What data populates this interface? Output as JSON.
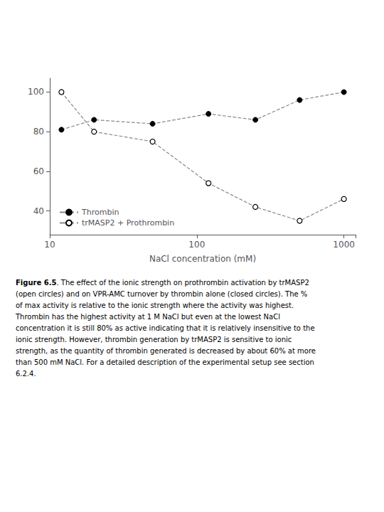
{
  "chart_data": {
    "type": "line",
    "xlabel": "NaCl concentration (mM)",
    "x": [
      12,
      20,
      50,
      120,
      250,
      500,
      1000
    ],
    "series": [
      {
        "name": "Thrombin",
        "values": [
          81,
          86,
          84,
          89,
          86,
          96,
          100
        ],
        "color": "#888888",
        "marker": "closed_circle",
        "line_style": "dashed"
      },
      {
        "name": "trMASP2 + Prothrombin",
        "values": [
          100,
          80,
          75,
          54,
          42,
          35,
          46
        ],
        "color": "#888888",
        "marker": "open_circle",
        "line_style": "dashed"
      }
    ],
    "xlim": [
      10,
      1200
    ],
    "xticks": [
      10,
      100,
      1000
    ],
    "ylim": [
      28,
      107
    ],
    "yticks": [
      40,
      60,
      80,
      100
    ],
    "log": "x",
    "grid": false,
    "legend": "lower left",
    "caption": {
      "label": "Figure 6.5",
      "lines": [
        ". The effect of the ionic strength on prothrombin activation by trMASP2",
        "(open circles) and on VPR-AMC turnover by thrombin alone (closed circles). The %",
        "of max activity is relative to the ionic strength where the activity was highest.",
        "Thrombin has the highest activity at 1 M NaCl but even at the lowest NaCl",
        "concentration it is still 80% as active indicating that it is relatively insensitive to the",
        "ionic strength. However, thrombin generation by trMASP2 is sensitive to ionic",
        "strength, as the quantity of thrombin generated is decreased by about 60% at more",
        "than 500 mM NaCl. For a detailed description of the experimental setup see section",
        "6.2.4."
      ]
    }
  }
}
